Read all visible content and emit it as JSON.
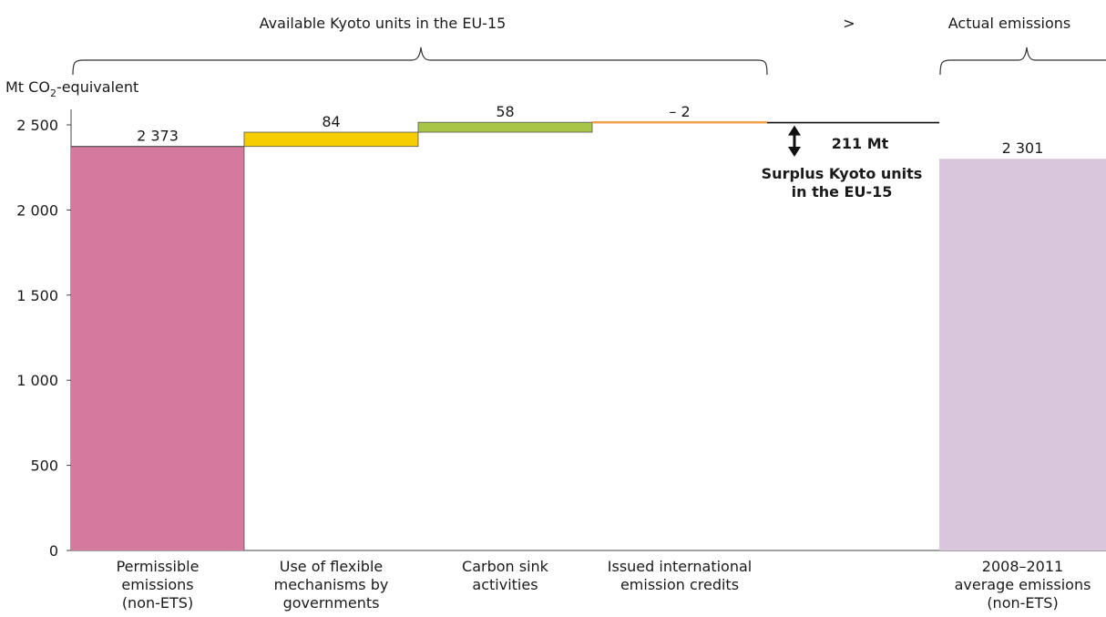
{
  "chart_data": {
    "type": "waterfall",
    "header_left": "Available Kyoto units in the EU-15",
    "header_compare": ">",
    "header_right": "Actual emissions",
    "ylabel_prefix": "Mt CO",
    "ylabel_sub": "2",
    "ylabel_suffix": "-equivalent",
    "ylim": [
      0,
      2600
    ],
    "yticks": [
      {
        "value": 0,
        "label": "0"
      },
      {
        "value": 500,
        "label": "500"
      },
      {
        "value": 1000,
        "label": "1 000"
      },
      {
        "value": 1500,
        "label": "1 500"
      },
      {
        "value": 2000,
        "label": "2 000"
      },
      {
        "value": 2500,
        "label": "2 500"
      }
    ],
    "bars": [
      {
        "category": [
          "Permissible",
          "emissions",
          "(non-ETS)"
        ],
        "base": 0,
        "value": 2373,
        "label": "2 373",
        "color": "#d5799e"
      },
      {
        "category": [
          "Use of flexible",
          "mechanisms by",
          "governments"
        ],
        "base": 2373,
        "value": 84,
        "label": "84",
        "color": "#f5cd00"
      },
      {
        "category": [
          "Carbon sink",
          "activities"
        ],
        "base": 2457,
        "value": 58,
        "label": "58",
        "color": "#a7c645"
      },
      {
        "category": [
          "Issued international",
          "emission credits"
        ],
        "base": 2515,
        "value": -2,
        "label": "– 2",
        "color": "#f0a050"
      },
      {
        "category": [
          "2008–2011",
          "average emissions",
          "(non-ETS)"
        ],
        "base": 0,
        "value": 2301,
        "label": "2 301",
        "color": "#d9c6dc"
      }
    ],
    "available_total": 2513,
    "actual_emissions": 2301,
    "surplus_value": "211 Mt",
    "surplus_label": [
      "Surplus Kyoto units",
      "in the EU-15"
    ]
  }
}
